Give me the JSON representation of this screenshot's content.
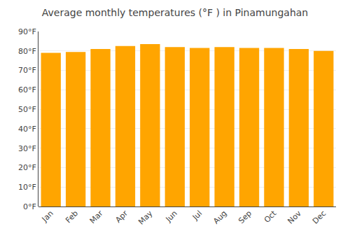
{
  "chart_data": {
    "type": "bar",
    "title": "Average monthly temperatures (°F ) in Pinamungahan",
    "categories": [
      "Jan",
      "Feb",
      "Mar",
      "Apr",
      "May",
      "Jun",
      "Jul",
      "Aug",
      "Sep",
      "Oct",
      "Nov",
      "Dec"
    ],
    "values": [
      79.0,
      79.5,
      81.0,
      82.5,
      83.5,
      82.0,
      81.5,
      82.0,
      81.5,
      81.5,
      81.0,
      80.0
    ],
    "color": "#FFA500",
    "ylim": [
      0,
      90
    ],
    "yticks": [
      {
        "value": 0,
        "label": "0°F"
      },
      {
        "value": 10,
        "label": "10°F"
      },
      {
        "value": 20,
        "label": "20°F"
      },
      {
        "value": 30,
        "label": "30°F"
      },
      {
        "value": 40,
        "label": "40°F"
      },
      {
        "value": 50,
        "label": "50°F"
      },
      {
        "value": 60,
        "label": "60°F"
      },
      {
        "value": 70,
        "label": "70°F"
      },
      {
        "value": 80,
        "label": "80°F"
      },
      {
        "value": 90,
        "label": "90°F"
      }
    ],
    "grid": true
  }
}
